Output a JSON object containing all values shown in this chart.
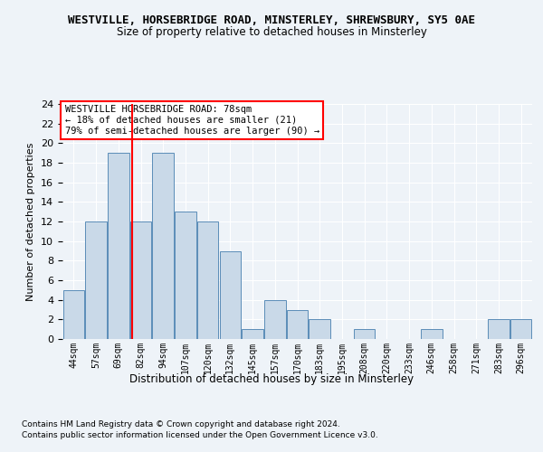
{
  "title_line1": "WESTVILLE, HORSEBRIDGE ROAD, MINSTERLEY, SHREWSBURY, SY5 0AE",
  "title_line2": "Size of property relative to detached houses in Minsterley",
  "xlabel": "Distribution of detached houses by size in Minsterley",
  "ylabel": "Number of detached properties",
  "bar_labels": [
    "44sqm",
    "57sqm",
    "69sqm",
    "82sqm",
    "94sqm",
    "107sqm",
    "120sqm",
    "132sqm",
    "145sqm",
    "157sqm",
    "170sqm",
    "183sqm",
    "195sqm",
    "208sqm",
    "220sqm",
    "233sqm",
    "246sqm",
    "258sqm",
    "271sqm",
    "283sqm",
    "296sqm"
  ],
  "bar_values": [
    5,
    12,
    19,
    12,
    19,
    13,
    12,
    9,
    1,
    4,
    3,
    2,
    0,
    1,
    0,
    0,
    1,
    0,
    0,
    2,
    2
  ],
  "bar_color": "#c9d9e8",
  "bar_edge_color": "#5b8db8",
  "ylim": [
    0,
    24
  ],
  "yticks": [
    0,
    2,
    4,
    6,
    8,
    10,
    12,
    14,
    16,
    18,
    20,
    22,
    24
  ],
  "red_line_x": 2.62,
  "annotation_text": "WESTVILLE HORSEBRIDGE ROAD: 78sqm\n← 18% of detached houses are smaller (21)\n79% of semi-detached houses are larger (90) →",
  "footer_line1": "Contains HM Land Registry data © Crown copyright and database right 2024.",
  "footer_line2": "Contains public sector information licensed under the Open Government Licence v3.0.",
  "bg_color": "#eef3f8",
  "plot_bg_color": "#eef3f8"
}
